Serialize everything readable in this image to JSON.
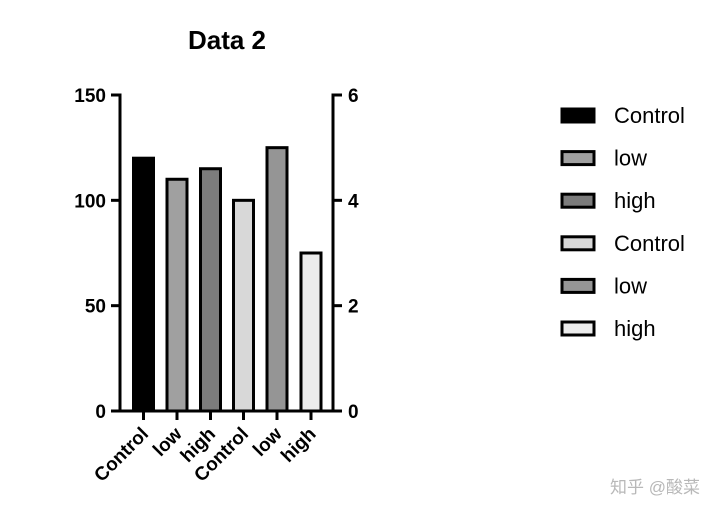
{
  "chart_data": {
    "type": "bar",
    "title": "Data 2",
    "categories": [
      "Control",
      "low",
      "high",
      "Control",
      "low",
      "high"
    ],
    "left_axis": {
      "ylim": [
        0,
        150
      ],
      "ticks": [
        "0",
        "50",
        "100",
        "150"
      ]
    },
    "right_axis": {
      "ylim": [
        0,
        6
      ],
      "ticks": [
        "0",
        "2",
        "4",
        "6"
      ]
    },
    "series": [
      {
        "name": "Control",
        "axis": "left",
        "value": 120,
        "color": "#000000"
      },
      {
        "name": "low",
        "axis": "left",
        "value": 110,
        "color": "#a0a0a0"
      },
      {
        "name": "high",
        "axis": "left",
        "value": 115,
        "color": "#7c7c7c"
      },
      {
        "name": "Control",
        "axis": "right",
        "value": 4,
        "color": "#d8d8d8"
      },
      {
        "name": "low",
        "axis": "right",
        "value": 5,
        "color": "#959595"
      },
      {
        "name": "high",
        "axis": "right",
        "value": 3,
        "color": "#ececec"
      }
    ],
    "legend_position": "right",
    "grid": false
  },
  "watermark": "知乎 @酸菜"
}
